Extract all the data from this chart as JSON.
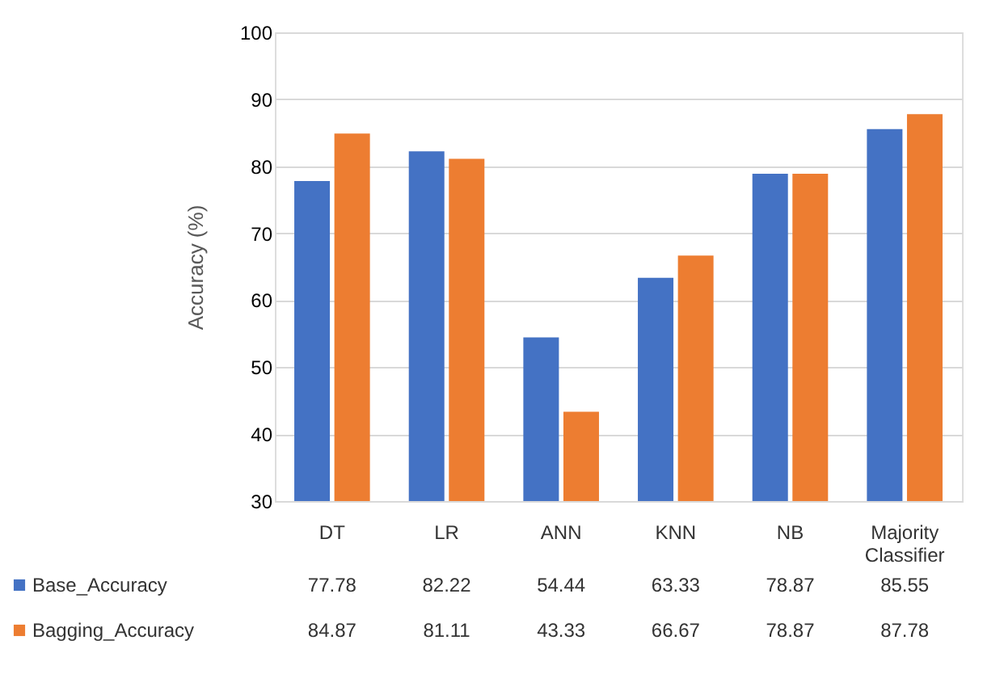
{
  "chart_data": {
    "type": "bar",
    "ylabel": "Accuracy (%)",
    "categories": [
      "DT",
      "LR",
      "ANN",
      "KNN",
      "NB",
      "Majority Classifier"
    ],
    "series": [
      {
        "name": "Base_Accuracy",
        "color": "#4472c4",
        "values": [
          77.78,
          82.22,
          54.44,
          63.33,
          78.87,
          85.55
        ]
      },
      {
        "name": "Bagging_Accuracy",
        "color": "#ed7d31",
        "values": [
          84.87,
          81.11,
          43.33,
          66.67,
          78.87,
          87.78
        ]
      }
    ],
    "ylim": [
      30,
      100
    ],
    "yticks": [
      30,
      40,
      50,
      60,
      70,
      80,
      90,
      100
    ],
    "grid": "y",
    "legend": "bottom",
    "data_labels": true
  }
}
